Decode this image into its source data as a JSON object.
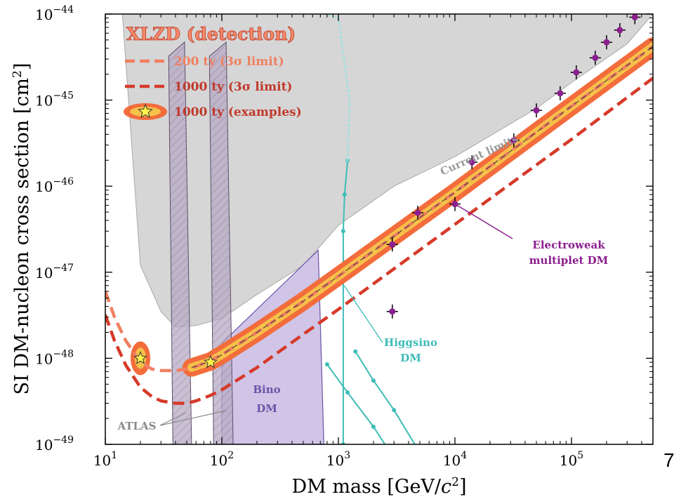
{
  "chart_data": {
    "type": "line",
    "xlabel": "DM mass [GeV/c²]",
    "ylabel": "SI DM-nucleon cross section [cm²]",
    "x_scale": "log",
    "y_scale": "log",
    "xlim": [
      10,
      500000
    ],
    "ylim": [
      1e-49,
      1e-44
    ],
    "x_ticks": [
      {
        "value": 10,
        "base": "10",
        "exp": "1"
      },
      {
        "value": 100,
        "base": "10",
        "exp": "2"
      },
      {
        "value": 1000,
        "base": "10",
        "exp": "3"
      },
      {
        "value": 10000,
        "base": "10",
        "exp": "4"
      },
      {
        "value": 100000,
        "base": "10",
        "exp": "5"
      }
    ],
    "y_ticks": [
      {
        "value": 1e-49,
        "base": "10",
        "exp": "−49"
      },
      {
        "value": 1e-48,
        "base": "10",
        "exp": "−48"
      },
      {
        "value": 1e-47,
        "base": "10",
        "exp": "−47"
      },
      {
        "value": 1e-46,
        "base": "10",
        "exp": "−46"
      },
      {
        "value": 1e-45,
        "base": "10",
        "exp": "−45"
      },
      {
        "value": 1e-44,
        "base": "10",
        "exp": "−44"
      }
    ],
    "legend": {
      "title": "XLZD (detection)",
      "entries": [
        {
          "label": "200 ty (3σ limit)",
          "style": "dashed",
          "color": "#f08060"
        },
        {
          "label": "1000 ty (3σ limit)",
          "style": "dashed",
          "color": "#d63a2a"
        },
        {
          "label": "1000 ty (examples)",
          "style": "band-star",
          "color": "#f36c3c"
        }
      ],
      "placement": "top-left"
    },
    "series": [
      {
        "name": "200 ty (3σ limit)",
        "style": "dashed",
        "color": "#f08060",
        "x": [
          10,
          12,
          15,
          20,
          25,
          30,
          40,
          50,
          60,
          80,
          100,
          200,
          500,
          1000,
          10000,
          100000,
          500000
        ],
        "y": [
          6e-48,
          3e-48,
          1.6e-48,
          9e-49,
          7.5e-49,
          7.2e-49,
          7.2e-49,
          7.5e-49,
          8e-49,
          9.5e-49,
          1.1e-48,
          2e-48,
          4.6e-48,
          9e-48,
          8.5e-47,
          8.5e-46,
          4.2e-45
        ]
      },
      {
        "name": "1000 ty (3σ limit)",
        "style": "dashed",
        "color": "#d63a2a",
        "x": [
          10,
          12,
          15,
          20,
          25,
          30,
          40,
          50,
          60,
          80,
          100,
          200,
          500,
          1000,
          10000,
          100000,
          500000
        ],
        "y": [
          3.2e-48,
          1.6e-48,
          8.3e-49,
          4.6e-49,
          3.6e-49,
          3.2e-49,
          3e-49,
          3e-49,
          3.2e-49,
          3.7e-49,
          4.3e-49,
          7.8e-49,
          1.9e-48,
          3.7e-48,
          3.6e-47,
          3.5e-46,
          1.8e-45
        ]
      }
    ],
    "examples": [
      {
        "label": "1000 ty (examples)",
        "x": 20,
        "y": 1e-48
      },
      {
        "label": "1000 ty (examples)",
        "x": 80,
        "y": 9e-49
      }
    ],
    "example_band": {
      "x": [
        55,
        80,
        100,
        200,
        500,
        1000,
        10000,
        100000,
        500000
      ],
      "y": [
        7.8e-49,
        9.2e-49,
        1.1e-48,
        2e-48,
        4.6e-48,
        9e-48,
        8.5e-47,
        8.5e-46,
        4.2e-45
      ]
    },
    "current_limits": {
      "label": "Current limits",
      "x": [
        14,
        20,
        30,
        40,
        60,
        100,
        200,
        500,
        1000,
        3000,
        10000,
        50000,
        100000,
        300000,
        500000
      ],
      "y": [
        1e-44,
        1.2e-47,
        3.5e-48,
        2.3e-48,
        2.4e-48,
        2.9e-48,
        5.5e-48,
        1.2e-47,
        3.5e-47,
        1e-46,
        2.2e-46,
        8e-46,
        1.6e-45,
        4.5e-45,
        1e-44
      ]
    },
    "electroweak_points": {
      "label": "Electroweak multiplet DM",
      "x": [
        2900,
        2900,
        4800,
        10000,
        14000,
        32000,
        50000,
        80000,
        110000,
        160000,
        200000,
        260000,
        350000
      ],
      "y": [
        3.5e-48,
        2.1e-47,
        4.9e-47,
        6.2e-47,
        1.9e-46,
        3.4e-46,
        7.6e-46,
        1.2e-45,
        2.1e-45,
        3.1e-45,
        4.7e-45,
        6.5e-45,
        9.2e-45
      ]
    },
    "higgsino": {
      "label": "Higgsino DM",
      "curve1": {
        "x": [
          1100,
          1100,
          1130,
          1200
        ],
        "y": [
          1e-49,
          3e-47,
          8e-47,
          2e-46
        ]
      },
      "curve2": {
        "x": [
          1400,
          2000,
          3000,
          5000,
          7500
        ],
        "y": [
          1.2e-48,
          5.5e-49,
          2.5e-49,
          8e-50,
          3e-50
        ]
      },
      "curve3": {
        "x": [
          800,
          1200,
          2000,
          3500
        ],
        "y": [
          8.5e-49,
          4e-49,
          1.6e-49,
          5e-50
        ]
      }
    },
    "bino": {
      "label": "Bino DM",
      "x_range": [
        100,
        750
      ]
    },
    "atlas": {
      "label": "ATLAS",
      "x_ranges": [
        [
          38,
          55
        ],
        [
          85,
          125
        ]
      ]
    }
  },
  "corner_text": "7"
}
